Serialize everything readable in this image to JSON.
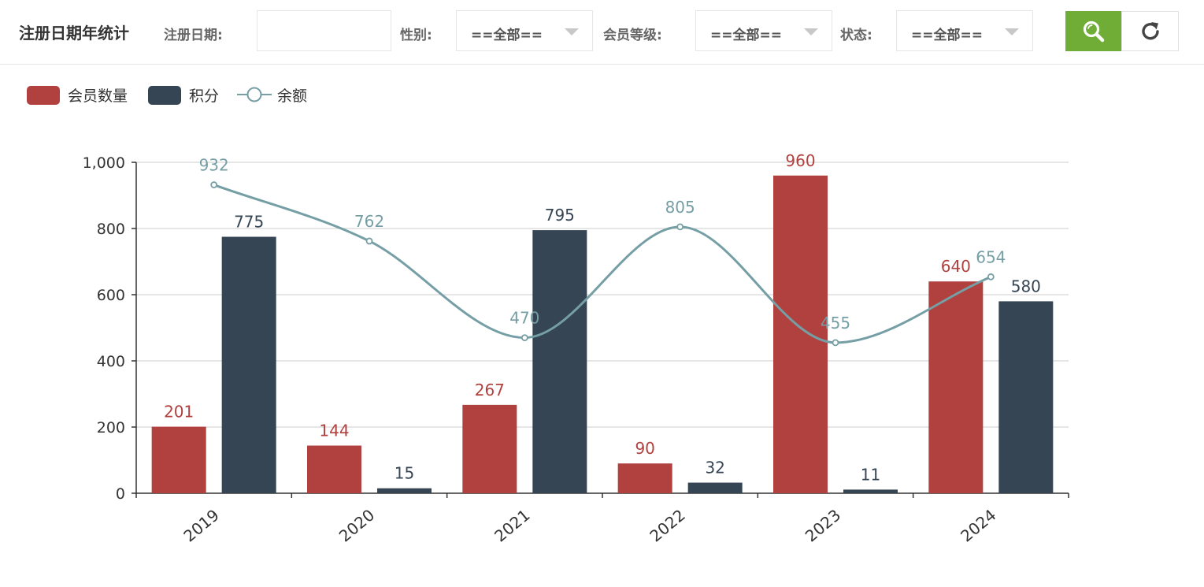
{
  "toolbar": {
    "title": "注册日期年统计",
    "date_label": "注册日期:",
    "date_value": "",
    "gender_label": "性别:",
    "gender_value": "==全部==",
    "level_label": "会员等级:",
    "level_value": "==全部==",
    "status_label": "状态:",
    "status_value": "==全部==",
    "search_icon": "search-icon",
    "refresh_icon": "refresh-icon",
    "accent_color": "#6fad36"
  },
  "chart_data": {
    "type": "bar",
    "categories": [
      "2019",
      "2020",
      "2021",
      "2022",
      "2023",
      "2024"
    ],
    "series": [
      {
        "name": "会员数量",
        "type": "bar",
        "color": "#b0413e",
        "values": [
          201,
          144,
          267,
          90,
          960,
          640
        ]
      },
      {
        "name": "积分",
        "type": "bar",
        "color": "#354554",
        "values": [
          775,
          15,
          795,
          32,
          11,
          580
        ]
      },
      {
        "name": "余额",
        "type": "line",
        "smooth": true,
        "color": "#759fa5",
        "values": [
          932,
          762,
          470,
          805,
          455,
          654
        ]
      }
    ],
    "ylim": [
      0,
      1000
    ],
    "yticks": [
      "0",
      "200",
      "400",
      "600",
      "800",
      "1,000"
    ],
    "grid": true,
    "legend_position": "top-left",
    "title": "",
    "xlabel": "",
    "ylabel": ""
  }
}
